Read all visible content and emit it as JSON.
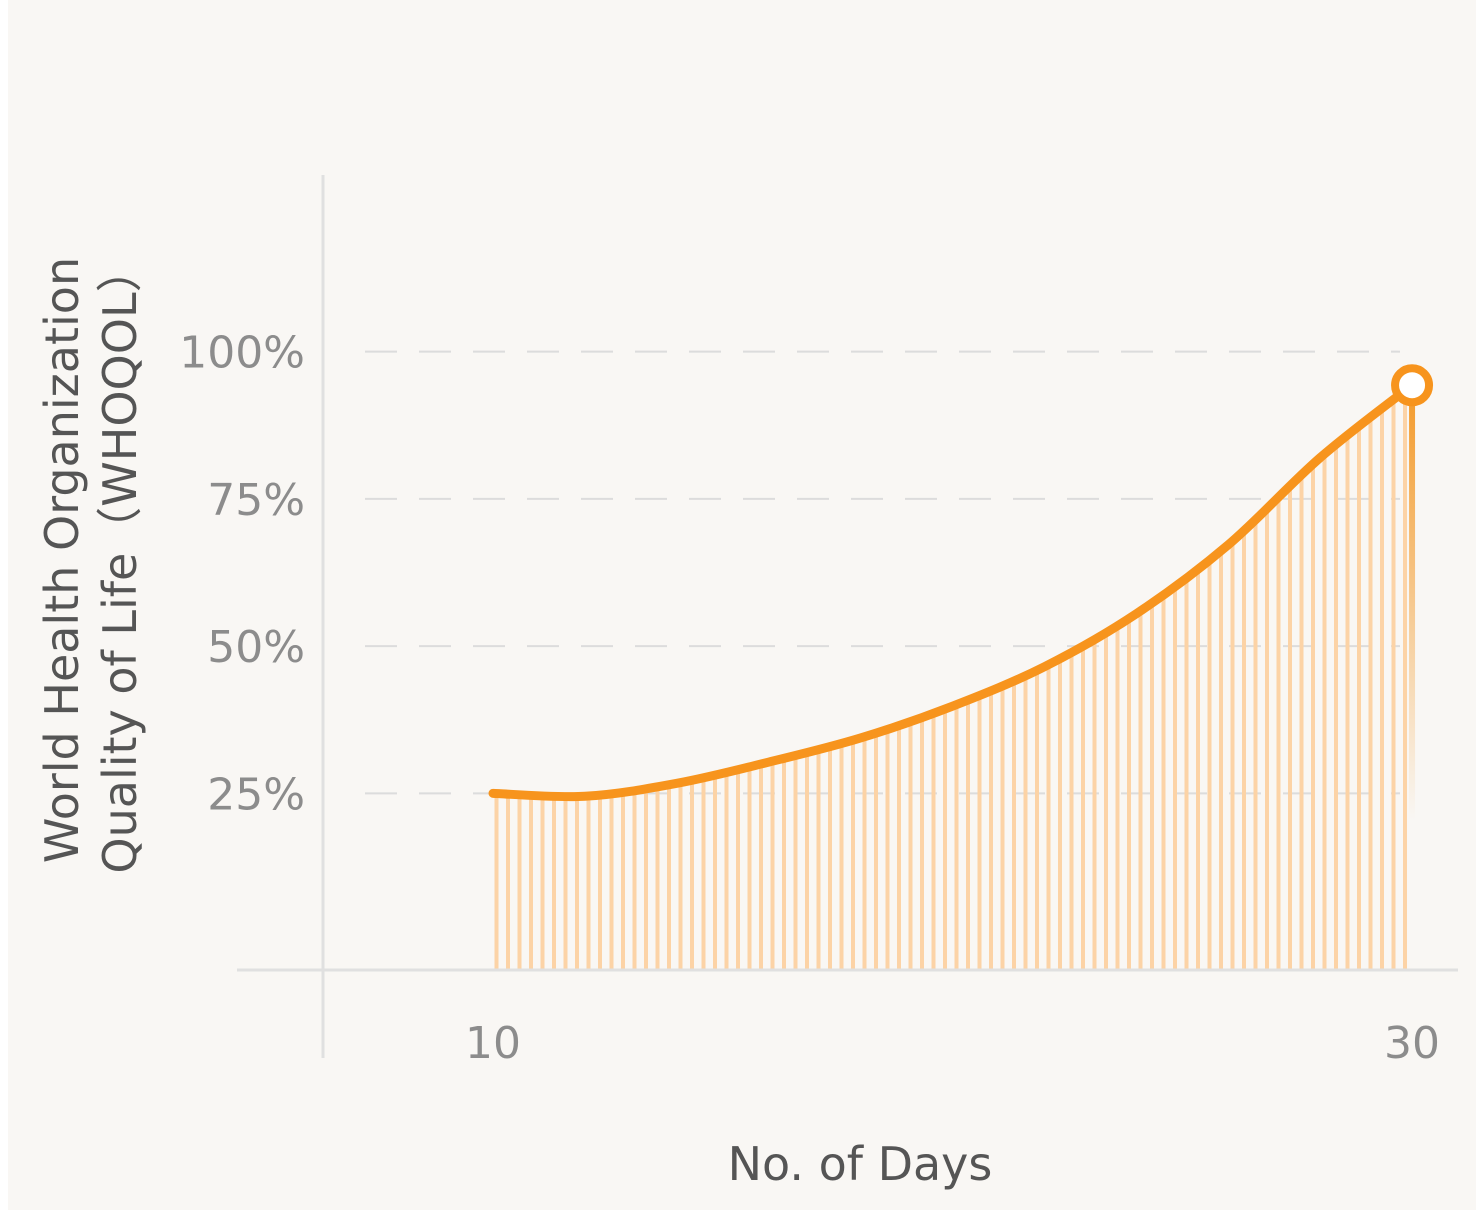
{
  "chart_data": {
    "type": "area",
    "x_label": "No. of Days",
    "y_label": [
      "World Health  Organization",
      "Quality of Life（WHOQOL）"
    ],
    "x": [
      10,
      12,
      14,
      16,
      18,
      20,
      22,
      24,
      26,
      28,
      30
    ],
    "series": [
      {
        "color": "#f7941d",
        "values": [
          25,
          24.5,
          26.7,
          30.3,
          34.4,
          39.8,
          46.5,
          55.5,
          67.2,
          82,
          94.3
        ]
      }
    ],
    "xlim": [
      6.3,
      31
    ],
    "ylim": [
      -5,
      130
    ],
    "xticks": [
      10,
      30
    ],
    "yticks": [
      {
        "value": 25,
        "label": "25%"
      },
      {
        "value": 50,
        "label": "50%"
      },
      {
        "value": 75,
        "label": "75%"
      },
      {
        "value": 100,
        "label": "100%"
      }
    ],
    "grid": true
  }
}
